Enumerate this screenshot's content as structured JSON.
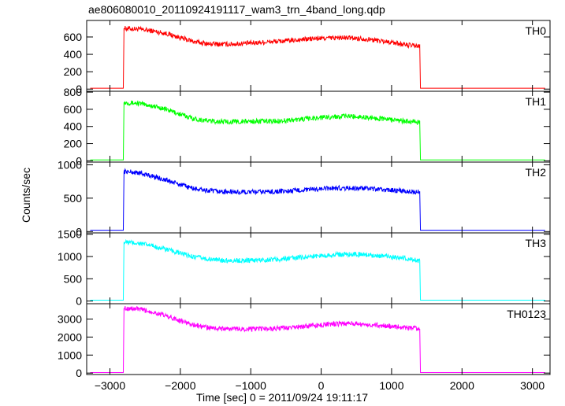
{
  "title": "ae806080010_20110924191117_wam3_trn_4band_long.qdp",
  "chart_data": {
    "type": "line",
    "xlabel": "Time [sec] 0 = 2011/09/24 19:11:17",
    "ylabel": "Counts/sec",
    "xlim": [
      -3330,
      3250
    ],
    "xticks": [
      -3000,
      -2000,
      -1000,
      0,
      1000,
      2000,
      3000
    ],
    "xtick_labels": [
      "−3000",
      "−2000",
      "−1000",
      "0",
      "1000",
      "2000",
      "3000"
    ],
    "grid": false,
    "panels": [
      {
        "name": "TH0",
        "color": "#ff0000",
        "ylim": [
          -25,
          790
        ],
        "yticks": [
          0,
          200,
          400,
          600
        ],
        "ytick_labels": [
          "0",
          "200",
          "400",
          "600"
        ],
        "x": [
          -3280,
          -2810,
          -2800,
          -2600,
          -2400,
          -2200,
          -2000,
          -1800,
          -1600,
          -1400,
          -1200,
          -1000,
          -800,
          -600,
          -400,
          -200,
          0,
          200,
          400,
          600,
          800,
          1000,
          1200,
          1400,
          1410,
          1420,
          3180
        ],
        "y": [
          10,
          10,
          700,
          690,
          670,
          640,
          590,
          545,
          520,
          515,
          520,
          530,
          540,
          550,
          560,
          575,
          585,
          590,
          590,
          580,
          560,
          540,
          510,
          490,
          10,
          10,
          10
        ]
      },
      {
        "name": "TH1",
        "color": "#00ff00",
        "ylim": [
          -15,
          810
        ],
        "yticks": [
          0,
          200,
          400,
          600,
          800
        ],
        "ytick_labels": [
          "0",
          "200",
          "400",
          "600",
          "800"
        ],
        "x": [
          -3280,
          -2810,
          -2800,
          -2600,
          -2400,
          -2200,
          -2000,
          -1800,
          -1600,
          -1400,
          -1200,
          -1000,
          -800,
          -600,
          -400,
          -200,
          0,
          200,
          400,
          600,
          800,
          1000,
          1200,
          1400,
          1410,
          1420,
          3180
        ],
        "y": [
          10,
          10,
          680,
          670,
          640,
          600,
          540,
          490,
          465,
          455,
          455,
          460,
          460,
          465,
          475,
          490,
          505,
          515,
          520,
          510,
          495,
          480,
          460,
          445,
          10,
          10,
          10
        ]
      },
      {
        "name": "TH2",
        "color": "#0000ff",
        "ylim": [
          -20,
          1040
        ],
        "yticks": [
          0,
          500,
          1000
        ],
        "ytick_labels": [
          "0",
          "500",
          "1000"
        ],
        "x": [
          -3280,
          -2810,
          -2800,
          -2600,
          -2400,
          -2200,
          -2000,
          -1800,
          -1600,
          -1400,
          -1200,
          -1000,
          -800,
          -600,
          -400,
          -200,
          0,
          200,
          400,
          600,
          800,
          1000,
          1200,
          1400,
          1410,
          1420,
          3180
        ],
        "y": [
          20,
          20,
          900,
          880,
          830,
          770,
          700,
          640,
          610,
          595,
          590,
          590,
          595,
          600,
          610,
          625,
          640,
          650,
          650,
          645,
          630,
          620,
          605,
          590,
          20,
          20,
          20
        ]
      },
      {
        "name": "TH3",
        "color": "#00ffff",
        "ylim": [
          -60,
          1530
        ],
        "yticks": [
          0,
          500,
          1000,
          1500
        ],
        "ytick_labels": [
          "0",
          "500",
          "1000",
          "1500"
        ],
        "x": [
          -3280,
          -2810,
          -2800,
          -2600,
          -2400,
          -2200,
          -2000,
          -1800,
          -1600,
          -1400,
          -1200,
          -1000,
          -800,
          -600,
          -400,
          -200,
          0,
          200,
          400,
          600,
          800,
          1000,
          1200,
          1400,
          1410,
          1420,
          3180
        ],
        "y": [
          20,
          20,
          1320,
          1300,
          1240,
          1160,
          1070,
          990,
          940,
          915,
          910,
          915,
          925,
          940,
          965,
          995,
          1020,
          1040,
          1050,
          1045,
          1020,
          990,
          950,
          910,
          20,
          20,
          20
        ]
      },
      {
        "name": "TH0123",
        "color": "#ff00ff",
        "ylim": [
          -80,
          3850
        ],
        "yticks": [
          0,
          1000,
          2000,
          3000
        ],
        "ytick_labels": [
          "0",
          "1000",
          "2000",
          "3000"
        ],
        "x": [
          -3280,
          -2810,
          -2800,
          -2600,
          -2400,
          -2200,
          -2000,
          -1800,
          -1600,
          -1400,
          -1200,
          -1000,
          -800,
          -600,
          -400,
          -200,
          0,
          200,
          400,
          600,
          800,
          1000,
          1200,
          1400,
          1410,
          1420,
          3180
        ],
        "y": [
          30,
          30,
          3600,
          3550,
          3400,
          3170,
          2900,
          2660,
          2520,
          2460,
          2450,
          2450,
          2460,
          2480,
          2530,
          2600,
          2680,
          2730,
          2750,
          2720,
          2660,
          2600,
          2530,
          2450,
          30,
          30,
          30
        ]
      }
    ]
  }
}
